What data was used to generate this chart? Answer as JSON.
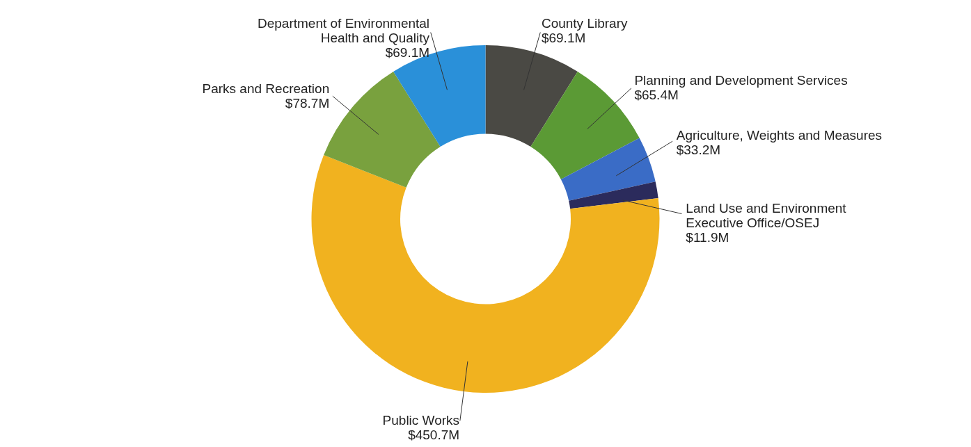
{
  "chart_data": {
    "type": "donut",
    "categories": [
      "County Library",
      "Planning and Development Services",
      "Agriculture, Weights and Measures",
      "Land Use and Environment Executive Office/OSEJ",
      "Public Works",
      "Parks and Recreation",
      "Department of Environmental Health and Quality"
    ],
    "values": [
      69.1,
      65.4,
      33.2,
      11.9,
      450.7,
      78.7,
      69.1
    ],
    "value_labels": [
      "$69.1M",
      "$65.4M",
      "$33.2M",
      "$11.9M",
      "$450.7M",
      "$78.7M",
      "$69.1M"
    ],
    "colors": [
      "#4a4944",
      "#5b9a35",
      "#3a6cc6",
      "#2b2b5c",
      "#f1b21f",
      "#79a13e",
      "#2a90d9"
    ],
    "legend": false
  }
}
